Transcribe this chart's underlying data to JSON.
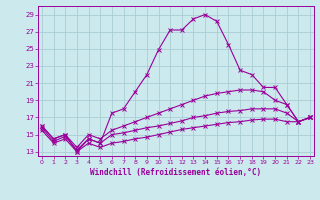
{
  "xlabel": "Windchill (Refroidissement éolien,°C)",
  "background_color": "#cce9ed",
  "grid_color": "#aacdd4",
  "line_color": "#990099",
  "x_ticks": [
    0,
    1,
    2,
    3,
    4,
    5,
    6,
    7,
    8,
    9,
    10,
    11,
    12,
    13,
    14,
    15,
    16,
    17,
    18,
    19,
    20,
    21,
    22,
    23
  ],
  "y_ticks": [
    13,
    15,
    17,
    19,
    21,
    23,
    25,
    27,
    29
  ],
  "xlim": [
    -0.3,
    23.3
  ],
  "ylim": [
    12.5,
    30.0
  ],
  "series": [
    {
      "x": [
        0,
        1,
        2,
        3,
        4,
        5,
        6,
        7,
        8,
        9,
        10,
        11,
        12,
        13,
        14,
        15,
        16,
        17,
        18,
        19,
        20,
        21,
        22,
        23
      ],
      "y": [
        16.0,
        14.5,
        15.0,
        13.0,
        14.5,
        14.0,
        17.5,
        18.0,
        20.0,
        22.0,
        24.9,
        27.2,
        27.2,
        28.5,
        29.0,
        28.2,
        25.5,
        22.5,
        22.0,
        20.5,
        20.5,
        18.5,
        16.5,
        17.0
      ]
    },
    {
      "x": [
        0,
        1,
        2,
        3,
        4,
        5,
        6,
        7,
        8,
        9,
        10,
        11,
        12,
        13,
        14,
        15,
        16,
        17,
        18,
        19,
        20,
        21,
        22,
        23
      ],
      "y": [
        16.0,
        14.5,
        15.0,
        13.5,
        15.0,
        14.5,
        15.5,
        16.0,
        16.5,
        17.0,
        17.5,
        18.0,
        18.5,
        19.0,
        19.5,
        19.8,
        20.0,
        20.2,
        20.2,
        20.0,
        19.0,
        18.5,
        16.5,
        17.0
      ]
    },
    {
      "x": [
        0,
        1,
        2,
        3,
        4,
        5,
        6,
        7,
        8,
        9,
        10,
        11,
        12,
        13,
        14,
        15,
        16,
        17,
        18,
        19,
        20,
        21,
        22,
        23
      ],
      "y": [
        15.8,
        14.2,
        14.8,
        13.2,
        14.5,
        14.0,
        15.0,
        15.2,
        15.5,
        15.8,
        16.0,
        16.3,
        16.6,
        17.0,
        17.2,
        17.5,
        17.7,
        17.8,
        18.0,
        18.0,
        18.0,
        17.5,
        16.5,
        17.0
      ]
    },
    {
      "x": [
        0,
        1,
        2,
        3,
        4,
        5,
        6,
        7,
        8,
        9,
        10,
        11,
        12,
        13,
        14,
        15,
        16,
        17,
        18,
        19,
        20,
        21,
        22,
        23
      ],
      "y": [
        15.5,
        14.0,
        14.5,
        13.0,
        14.0,
        13.5,
        14.0,
        14.2,
        14.5,
        14.7,
        15.0,
        15.3,
        15.6,
        15.8,
        16.0,
        16.2,
        16.4,
        16.5,
        16.7,
        16.8,
        16.8,
        16.5,
        16.5,
        17.0
      ]
    }
  ]
}
